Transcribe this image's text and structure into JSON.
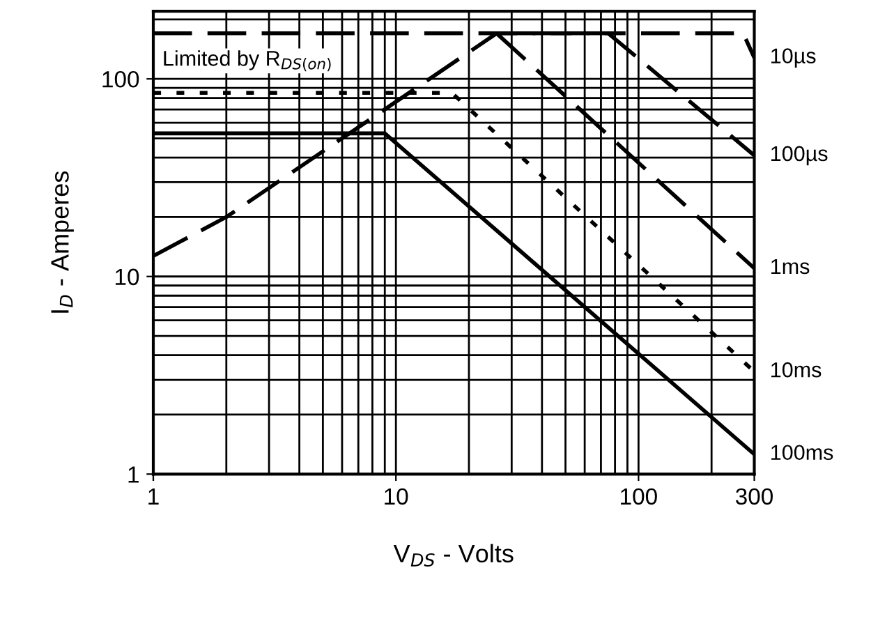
{
  "chart_data": {
    "type": "line",
    "xlabel": "V$_{DS}$ - Volts",
    "ylabel": "I$_{D}$ - Amperes",
    "log": "xy",
    "xlim": [
      1,
      300
    ],
    "xticks": [
      1,
      10,
      100,
      300
    ],
    "ylim": [
      1,
      220
    ],
    "yticks": [
      1,
      10,
      100
    ],
    "grid": true,
    "marker": "none",
    "annotations": [
      "Limited by R$_{DS(on)}$"
    ],
    "series": [
      {
        "color": "#000000",
        "line_style": "dashed",
        "x": [
          1,
          2,
          26
        ],
        "values": [
          12.7,
          20,
          170
        ]
      },
      {
        "name": "10µs",
        "color": "#000000",
        "line_style": "dashed",
        "x": [
          1,
          270,
          300
        ],
        "values": [
          170,
          170,
          128
        ]
      },
      {
        "name": "100µs",
        "color": "#000000",
        "line_style": "dashed",
        "x": [
          26,
          75,
          300
        ],
        "values": [
          170,
          170,
          41
        ]
      },
      {
        "name": "1ms",
        "color": "#000000",
        "line_style": "dashed",
        "x": [
          26,
          300
        ],
        "values": [
          170,
          11
        ]
      },
      {
        "name": "10ms",
        "color": "#000000",
        "line_style": "dotted",
        "x": [
          1,
          17,
          300
        ],
        "values": [
          85,
          85,
          3.3
        ]
      },
      {
        "name": "100ms",
        "color": "#000000",
        "line_style": "solid",
        "x": [
          1,
          9,
          300
        ],
        "values": [
          53,
          53,
          1.26
        ]
      }
    ]
  }
}
